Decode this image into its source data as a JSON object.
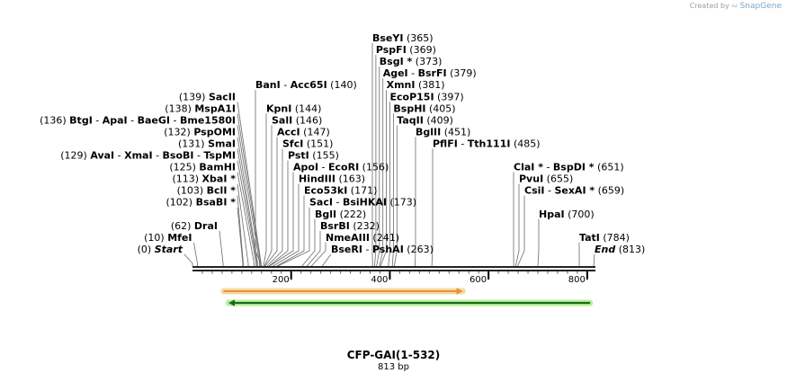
{
  "credit": {
    "prefix": "Created by",
    "brand": "SnapGene"
  },
  "title": "CFP-GAI(1-532)",
  "length_label": "813 bp",
  "axis": {
    "ticks": [
      {
        "label": "200",
        "bp": 200
      },
      {
        "label": "400",
        "bp": 400
      },
      {
        "label": "600",
        "bp": 600
      },
      {
        "label": "800",
        "bp": 800
      }
    ]
  },
  "features": [
    {
      "name": "orf-orange",
      "start": 63,
      "end": 548,
      "direction": "forward",
      "fill": "#e8943a",
      "glow": "#f6dca4"
    },
    {
      "name": "orf-green",
      "start": 73,
      "end": 806,
      "direction": "reverse",
      "fill": "#1a6a1a",
      "glow": "#b7ef99"
    }
  ],
  "labels": [
    {
      "row": 0,
      "bp": 365,
      "pos": "(365)",
      "enzymes": [
        {
          "name": "BseYI"
        }
      ]
    },
    {
      "row": 1,
      "bp": 369,
      "pos": "(369)",
      "enzymes": [
        {
          "name": "PspFI"
        }
      ]
    },
    {
      "row": 2,
      "bp": 373,
      "pos": "(373)",
      "enzymes": [
        {
          "name": "BsgI *"
        }
      ]
    },
    {
      "row": 3,
      "bp": 379,
      "pos": "(379)",
      "enzymes": [
        {
          "name": "AgeI"
        },
        {
          "name": "BsrFI"
        }
      ]
    },
    {
      "row": 4,
      "bp": 381,
      "pos": "(381)",
      "enzymes": [
        {
          "name": "XmnI"
        }
      ]
    },
    {
      "row": 5,
      "bp": 397,
      "pos": "(397)",
      "enzymes": [
        {
          "name": "EcoP15I"
        }
      ]
    },
    {
      "row": 6,
      "bp": 405,
      "pos": "(405)",
      "enzymes": [
        {
          "name": "BspHI"
        }
      ]
    },
    {
      "row": 7,
      "bp": 409,
      "pos": "(409)",
      "enzymes": [
        {
          "name": "TaqII"
        }
      ]
    },
    {
      "row": 8,
      "bp": 451,
      "pos": "(451)",
      "enzymes": [
        {
          "name": "BglII"
        }
      ]
    },
    {
      "row": 9,
      "bp": 485,
      "pos": "(485)",
      "enzymes": [
        {
          "name": "PflFI"
        },
        {
          "name": "Tth111I"
        }
      ]
    },
    {
      "row": 4,
      "bp": 140,
      "pos": "(140)",
      "enzymes": [
        {
          "name": "BanI"
        },
        {
          "name": "Acc65I"
        }
      ]
    },
    {
      "row": 5,
      "bp": 139,
      "pos": "(139)",
      "enzymes": [
        {
          "name": "SacII"
        }
      ]
    },
    {
      "row": 6,
      "bp": 144,
      "pos": "(144)",
      "enzymes": [
        {
          "name": "KpnI"
        }
      ]
    },
    {
      "row": 6,
      "bp": 138,
      "pos": "(138)",
      "enzymes": [
        {
          "name": "MspA1I"
        }
      ]
    },
    {
      "row": 7,
      "bp": 146,
      "pos": "(146)",
      "enzymes": [
        {
          "name": "SalI"
        }
      ]
    },
    {
      "row": 7,
      "bp": 136,
      "pos": "(136)",
      "enzymes": [
        {
          "name": "BtgI"
        },
        {
          "name": "ApaI"
        },
        {
          "name": "BaeGI"
        },
        {
          "name": "Bme1580I"
        }
      ]
    },
    {
      "row": 8,
      "bp": 147,
      "pos": "(147)",
      "enzymes": [
        {
          "name": "AccI"
        }
      ]
    },
    {
      "row": 8,
      "bp": 132,
      "pos": "(132)",
      "enzymes": [
        {
          "name": "PspOMI"
        }
      ]
    },
    {
      "row": 9,
      "bp": 151,
      "pos": "(151)",
      "enzymes": [
        {
          "name": "SfcI"
        }
      ]
    },
    {
      "row": 9,
      "bp": 131,
      "pos": "(131)",
      "enzymes": [
        {
          "name": "SmaI"
        }
      ]
    },
    {
      "row": 10,
      "bp": 155,
      "pos": "(155)",
      "enzymes": [
        {
          "name": "PstI"
        }
      ]
    },
    {
      "row": 10,
      "bp": 129,
      "pos": "(129)",
      "enzymes": [
        {
          "name": "AvaI"
        },
        {
          "name": "XmaI"
        },
        {
          "name": "BsoBI"
        },
        {
          "name": "TspMI"
        }
      ]
    },
    {
      "row": 11,
      "bp": 156,
      "pos": "(156)",
      "enzymes": [
        {
          "name": "ApoI"
        },
        {
          "name": "EcoRI"
        }
      ]
    },
    {
      "row": 11,
      "bp": 125,
      "pos": "(125)",
      "enzymes": [
        {
          "name": "BamHI"
        }
      ]
    },
    {
      "row": 12,
      "bp": 163,
      "pos": "(163)",
      "enzymes": [
        {
          "name": "HindIII"
        }
      ]
    },
    {
      "row": 12,
      "bp": 113,
      "pos": "(113)",
      "enzymes": [
        {
          "name": "XbaI *"
        }
      ]
    },
    {
      "row": 13,
      "bp": 171,
      "pos": "(171)",
      "enzymes": [
        {
          "name": "Eco53kI"
        }
      ]
    },
    {
      "row": 13,
      "bp": 103,
      "pos": "(103)",
      "enzymes": [
        {
          "name": "BclI *"
        }
      ]
    },
    {
      "row": 14,
      "bp": 173,
      "pos": "(173)",
      "enzymes": [
        {
          "name": "SacI"
        },
        {
          "name": "BsiHKAI"
        }
      ]
    },
    {
      "row": 14,
      "bp": 102,
      "pos": "(102)",
      "enzymes": [
        {
          "name": "BsaBI *"
        }
      ]
    },
    {
      "row": 15,
      "bp": 222,
      "pos": "(222)",
      "enzymes": [
        {
          "name": "BglI"
        }
      ]
    },
    {
      "row": 16,
      "bp": 232,
      "pos": "(232)",
      "enzymes": [
        {
          "name": "BsrBI"
        }
      ]
    },
    {
      "row": 16,
      "bp": 62,
      "pos": "(62)",
      "enzymes": [
        {
          "name": "DraI"
        }
      ]
    },
    {
      "row": 17,
      "bp": 241,
      "pos": "(241)",
      "enzymes": [
        {
          "name": "NmeAIII"
        }
      ]
    },
    {
      "row": 17,
      "bp": 10,
      "pos": "(10)",
      "enzymes": [
        {
          "name": "MfeI"
        }
      ]
    },
    {
      "row": 18,
      "bp": 263,
      "pos": "(263)",
      "enzymes": [
        {
          "name": "BseRI"
        },
        {
          "name": "PshAI"
        }
      ]
    },
    {
      "row": 18,
      "bp": 0,
      "pos": "(0)",
      "enzymes": [
        {
          "name": "Start",
          "italic": true
        }
      ]
    },
    {
      "row": 11,
      "bp": 651,
      "pos": "(651)",
      "enzymes": [
        {
          "name": "ClaI *"
        },
        {
          "name": "BspDI *"
        }
      ]
    },
    {
      "row": 12,
      "bp": 655,
      "pos": "(655)",
      "enzymes": [
        {
          "name": "PvuI"
        }
      ]
    },
    {
      "row": 13,
      "bp": 659,
      "pos": "(659)",
      "enzymes": [
        {
          "name": "CsiI"
        },
        {
          "name": "SexAI *"
        }
      ]
    },
    {
      "row": 15,
      "bp": 700,
      "pos": "(700)",
      "enzymes": [
        {
          "name": "HpaI"
        }
      ]
    },
    {
      "row": 17,
      "bp": 784,
      "pos": "(784)",
      "enzymes": [
        {
          "name": "TatI"
        }
      ]
    },
    {
      "row": 18,
      "bp": 813,
      "pos": "(813)",
      "enzymes": [
        {
          "name": "End",
          "italic": true
        }
      ]
    }
  ]
}
